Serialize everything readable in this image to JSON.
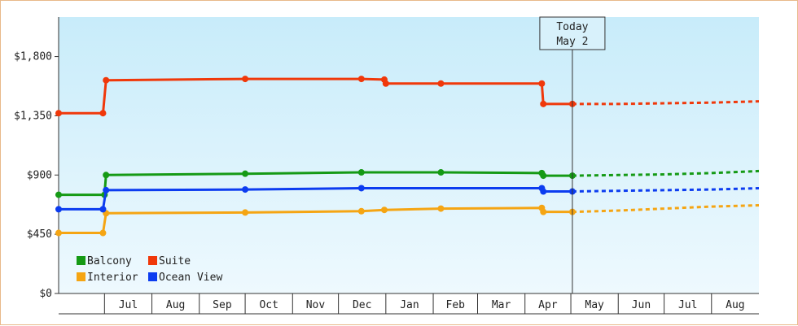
{
  "chart_data": {
    "type": "line",
    "title": "",
    "xlabel": "",
    "ylabel": "",
    "ylim": [
      0,
      2100
    ],
    "y_ticks": [
      "$0",
      "$450",
      "$900",
      "$1,350",
      "$1,800"
    ],
    "y_tick_values": [
      0,
      450,
      900,
      1350,
      1800
    ],
    "x_range": [
      "2015-06-01",
      "2016-09-01"
    ],
    "month_labels": [
      {
        "label": "Jul",
        "date": "2015-07-01"
      },
      {
        "label": "Aug",
        "date": "2015-08-01"
      },
      {
        "label": "Sep",
        "date": "2015-09-01"
      },
      {
        "label": "Oct",
        "date": "2015-10-01"
      },
      {
        "label": "Nov",
        "date": "2015-11-01"
      },
      {
        "label": "Dec",
        "date": "2015-12-01"
      },
      {
        "label": "Jan",
        "date": "2016-01-01"
      },
      {
        "label": "Feb",
        "date": "2016-02-01"
      },
      {
        "label": "Mar",
        "date": "2016-03-01"
      },
      {
        "label": "Apr",
        "date": "2016-04-01"
      },
      {
        "label": "May",
        "date": "2016-05-01"
      },
      {
        "label": "Jun",
        "date": "2016-06-01"
      },
      {
        "label": "Jul",
        "date": "2016-07-01"
      },
      {
        "label": "Aug",
        "date": "2016-08-01"
      }
    ],
    "today_marker": {
      "line1": "Today",
      "line2": "May 2",
      "date": "2016-05-02"
    },
    "legend_placement": "bottom-left",
    "grid": false,
    "series": [
      {
        "name": "Balcony",
        "color": "#159a15",
        "points": [
          [
            "2015-06-01",
            750
          ],
          [
            "2015-07-01",
            750
          ],
          [
            "2015-07-02",
            900
          ],
          [
            "2015-10-01",
            910
          ],
          [
            "2015-12-16",
            920
          ],
          [
            "2016-02-06",
            920
          ],
          [
            "2016-04-12",
            915
          ],
          [
            "2016-04-13",
            895
          ],
          [
            "2016-05-02",
            895
          ]
        ],
        "forecast": [
          [
            "2016-05-02",
            895
          ],
          [
            "2016-06-01",
            900
          ],
          [
            "2016-07-01",
            905
          ],
          [
            "2016-08-01",
            915
          ],
          [
            "2016-09-01",
            930
          ]
        ]
      },
      {
        "name": "Suite",
        "color": "#f0380a",
        "points": [
          [
            "2015-06-01",
            1370
          ],
          [
            "2015-06-30",
            1370
          ],
          [
            "2015-07-02",
            1620
          ],
          [
            "2015-10-01",
            1630
          ],
          [
            "2015-12-16",
            1630
          ],
          [
            "2015-12-31",
            1625
          ],
          [
            "2016-01-01",
            1595
          ],
          [
            "2016-02-06",
            1595
          ],
          [
            "2016-04-12",
            1595
          ],
          [
            "2016-04-13",
            1440
          ],
          [
            "2016-05-02",
            1440
          ]
        ],
        "forecast": [
          [
            "2016-05-02",
            1440
          ],
          [
            "2016-06-01",
            1440
          ],
          [
            "2016-07-01",
            1445
          ],
          [
            "2016-08-01",
            1450
          ],
          [
            "2016-09-01",
            1460
          ]
        ]
      },
      {
        "name": "Interior",
        "color": "#f5a513",
        "points": [
          [
            "2015-06-01",
            460
          ],
          [
            "2015-06-30",
            460
          ],
          [
            "2015-07-02",
            610
          ],
          [
            "2015-10-01",
            615
          ],
          [
            "2015-12-16",
            625
          ],
          [
            "2015-12-31",
            635
          ],
          [
            "2016-02-06",
            645
          ],
          [
            "2016-04-12",
            650
          ],
          [
            "2016-04-13",
            620
          ],
          [
            "2016-05-02",
            620
          ]
        ],
        "forecast": [
          [
            "2016-05-02",
            620
          ],
          [
            "2016-06-01",
            630
          ],
          [
            "2016-07-01",
            645
          ],
          [
            "2016-08-01",
            660
          ],
          [
            "2016-09-01",
            670
          ]
        ]
      },
      {
        "name": "Ocean View",
        "color": "#0c3cf0",
        "points": [
          [
            "2015-06-01",
            640
          ],
          [
            "2015-06-30",
            640
          ],
          [
            "2015-07-02",
            785
          ],
          [
            "2015-10-01",
            790
          ],
          [
            "2015-12-16",
            800
          ],
          [
            "2016-04-12",
            800
          ],
          [
            "2016-04-13",
            775
          ],
          [
            "2016-05-02",
            775
          ]
        ],
        "forecast": [
          [
            "2016-05-02",
            775
          ],
          [
            "2016-06-01",
            780
          ],
          [
            "2016-07-01",
            785
          ],
          [
            "2016-08-01",
            790
          ],
          [
            "2016-09-01",
            800
          ]
        ]
      }
    ],
    "legend": [
      {
        "name": "Balcony",
        "color": "#159a15"
      },
      {
        "name": "Suite",
        "color": "#f0380a"
      },
      {
        "name": "Interior",
        "color": "#f5a513"
      },
      {
        "name": "Ocean View",
        "color": "#0c3cf0"
      }
    ]
  }
}
